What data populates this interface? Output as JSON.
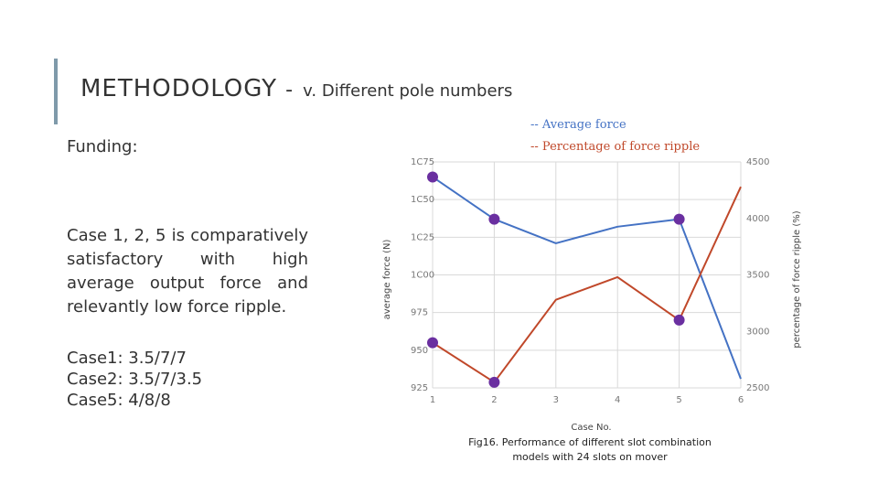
{
  "slide": {
    "title": "METHODOLOGY",
    "title_dash": "-",
    "subtitle": "v. Different pole numbers",
    "funding": "Funding:",
    "paragraph": "Case 1, 2, 5 is comparatively satisfactory with high average output force and relevantly low force ripple.",
    "cases": [
      "Case1: 3.5/7/7",
      "Case2: 3.5/7/3.5",
      "Case5: 4/8/8"
    ],
    "caption_line1": "Fig16. Performance of different slot combination",
    "caption_line2": "models with 24 slots on mover"
  },
  "colors": {
    "accent": "#7f9aaa",
    "average_force": "#4472c4",
    "force_ripple": "#c0482a",
    "marker": "#6a2fa0",
    "grid": "#d9d9d9"
  },
  "chart_data": {
    "type": "line",
    "x": [
      1,
      2,
      3,
      4,
      5,
      6
    ],
    "xlabel": "Case No.",
    "x_tick_labels": [
      "1",
      "2",
      "3",
      "4",
      "5",
      "6"
    ],
    "ylabel_left": "average force (N)",
    "ylabel_right": "percentage of force ripple (%)",
    "ylim_left": [
      925,
      1075
    ],
    "ylim_right": [
      25,
      45
    ],
    "left_tick_labels": [
      "1C75",
      "1C50",
      "1C25",
      "1C00",
      "975",
      "950",
      "925"
    ],
    "right_tick_labels": [
      "4500",
      "4000",
      "3500",
      "3000",
      "2500"
    ],
    "grid": true,
    "legend_position": "top-right",
    "series": [
      {
        "name": "-- Average force",
        "axis": "left",
        "values": [
          1065,
          1037,
          1021,
          1032,
          1037,
          931
        ],
        "markers": [
          1,
          2,
          5
        ]
      },
      {
        "name": "-- Percentage of force ripple",
        "axis": "right",
        "values": [
          29.0,
          25.5,
          32.8,
          34.8,
          31.0,
          42.8
        ],
        "markers": [
          1,
          2,
          5
        ]
      }
    ]
  }
}
